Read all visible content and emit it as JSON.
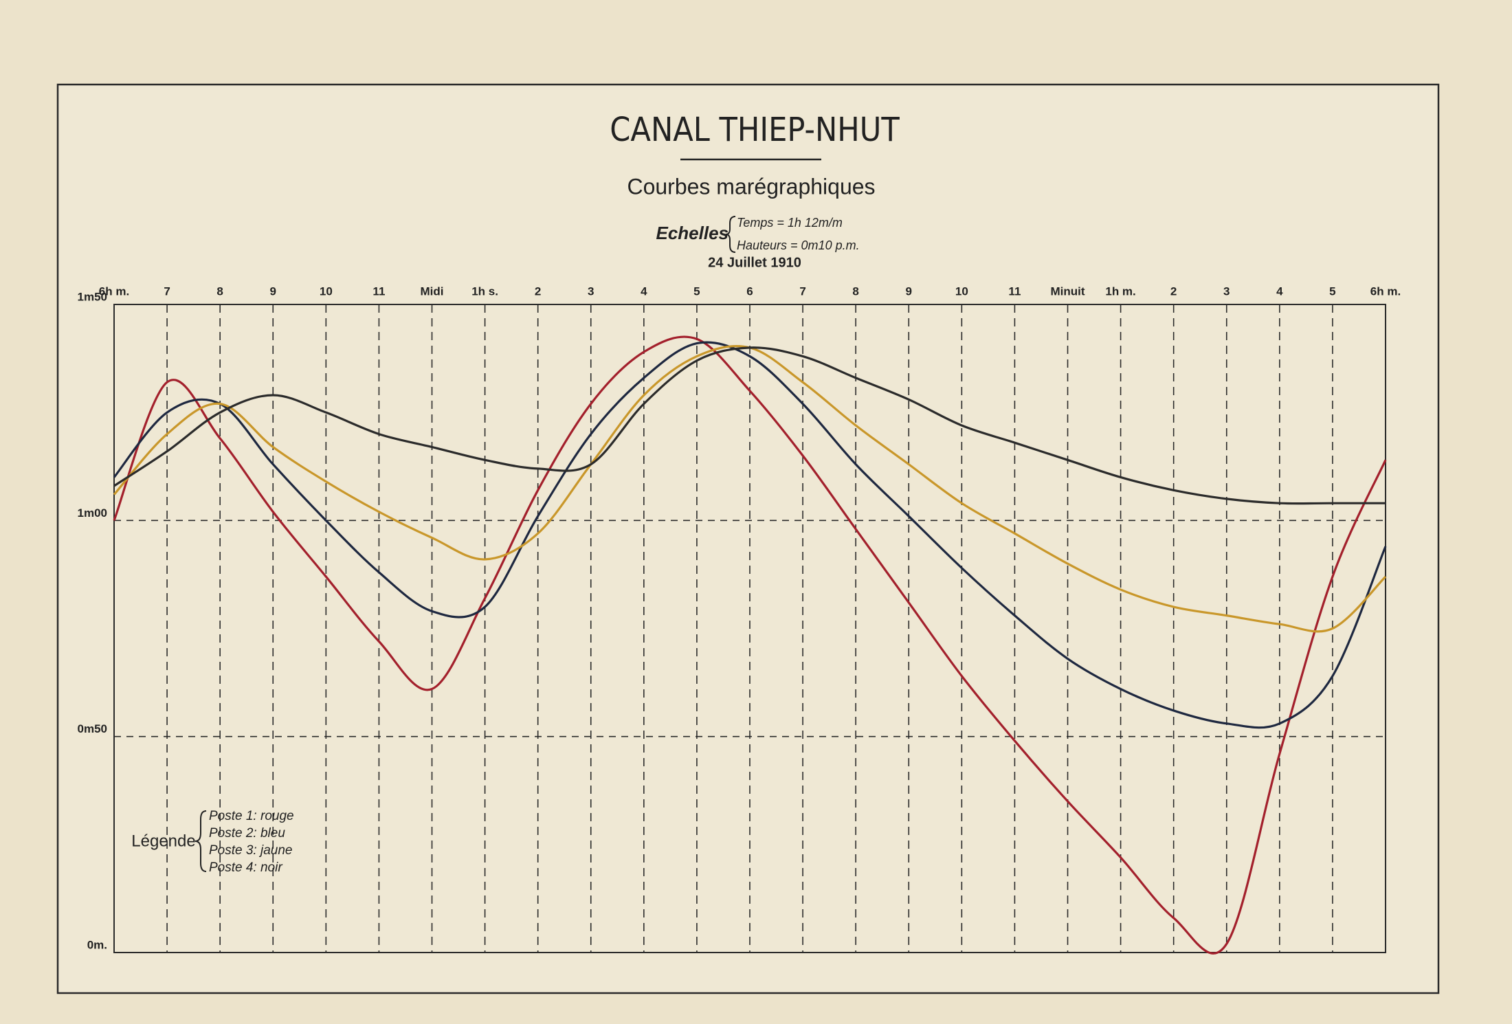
{
  "chart_data": {
    "type": "line",
    "title": "CANAL THIEP-NHUT",
    "subtitle": "Courbes marégraphiques",
    "scale_label": "Echelles",
    "scales": [
      "Temps = 1h 12m/m",
      "Hauteurs = 0m10 p.m."
    ],
    "date": "24 Juillet 1910",
    "legend_title": "Légende",
    "x": [
      6,
      7,
      8,
      9,
      10,
      11,
      12,
      13,
      14,
      15,
      16,
      17,
      18,
      19,
      20,
      21,
      22,
      23,
      24,
      25,
      26,
      27,
      28,
      29,
      30
    ],
    "xlim": [
      6,
      30
    ],
    "xticks": [
      {
        "value": 6,
        "label": "6h m."
      },
      {
        "value": 7,
        "label": "7"
      },
      {
        "value": 8,
        "label": "8"
      },
      {
        "value": 9,
        "label": "9"
      },
      {
        "value": 10,
        "label": "10"
      },
      {
        "value": 11,
        "label": "11"
      },
      {
        "value": 12,
        "label": "Midi"
      },
      {
        "value": 13,
        "label": "1h s."
      },
      {
        "value": 14,
        "label": "2"
      },
      {
        "value": 15,
        "label": "3"
      },
      {
        "value": 16,
        "label": "4"
      },
      {
        "value": 17,
        "label": "5"
      },
      {
        "value": 18,
        "label": "6"
      },
      {
        "value": 19,
        "label": "7"
      },
      {
        "value": 20,
        "label": "8"
      },
      {
        "value": 21,
        "label": "9"
      },
      {
        "value": 22,
        "label": "10"
      },
      {
        "value": 23,
        "label": "11"
      },
      {
        "value": 24,
        "label": "Minuit"
      },
      {
        "value": 25,
        "label": "1h m."
      },
      {
        "value": 26,
        "label": "2"
      },
      {
        "value": 27,
        "label": "3"
      },
      {
        "value": 28,
        "label": "4"
      },
      {
        "value": 29,
        "label": "5"
      },
      {
        "value": 30,
        "label": "6h m."
      }
    ],
    "ylim": [
      0,
      1.5
    ],
    "yticks": [
      {
        "value": 0,
        "label": "0m."
      },
      {
        "value": 0.5,
        "label": "0m50"
      },
      {
        "value": 1.0,
        "label": "1m00"
      },
      {
        "value": 1.5,
        "label": "1m50"
      }
    ],
    "grid": true,
    "series": [
      {
        "name": "Poste 1: rouge",
        "color": "#a3202c",
        "values": [
          1.0,
          1.32,
          1.19,
          1.02,
          0.87,
          0.72,
          0.61,
          0.82,
          1.07,
          1.27,
          1.39,
          1.42,
          1.3,
          1.15,
          0.98,
          0.81,
          0.64,
          0.49,
          0.35,
          0.22,
          0.08,
          0.02,
          0.46,
          0.87,
          1.14
        ]
      },
      {
        "name": "Poste 2: bleu",
        "color": "#1e2840",
        "values": [
          1.1,
          1.25,
          1.27,
          1.13,
          1.0,
          0.88,
          0.79,
          0.8,
          1.01,
          1.2,
          1.33,
          1.41,
          1.38,
          1.27,
          1.13,
          1.01,
          0.89,
          0.78,
          0.68,
          0.61,
          0.56,
          0.53,
          0.53,
          0.64,
          0.94
        ]
      },
      {
        "name": "Poste 3: jaune",
        "color": "#c9972a",
        "values": [
          1.06,
          1.2,
          1.27,
          1.17,
          1.09,
          1.02,
          0.96,
          0.91,
          0.97,
          1.13,
          1.29,
          1.38,
          1.4,
          1.32,
          1.22,
          1.13,
          1.04,
          0.97,
          0.9,
          0.84,
          0.8,
          0.78,
          0.76,
          0.75,
          0.87
        ]
      },
      {
        "name": "Poste 4: noir",
        "color": "#2b2b2b",
        "values": [
          1.08,
          1.16,
          1.25,
          1.29,
          1.25,
          1.2,
          1.17,
          1.14,
          1.12,
          1.13,
          1.27,
          1.37,
          1.4,
          1.38,
          1.33,
          1.28,
          1.22,
          1.18,
          1.14,
          1.1,
          1.07,
          1.05,
          1.04,
          1.04,
          1.04
        ]
      }
    ]
  }
}
